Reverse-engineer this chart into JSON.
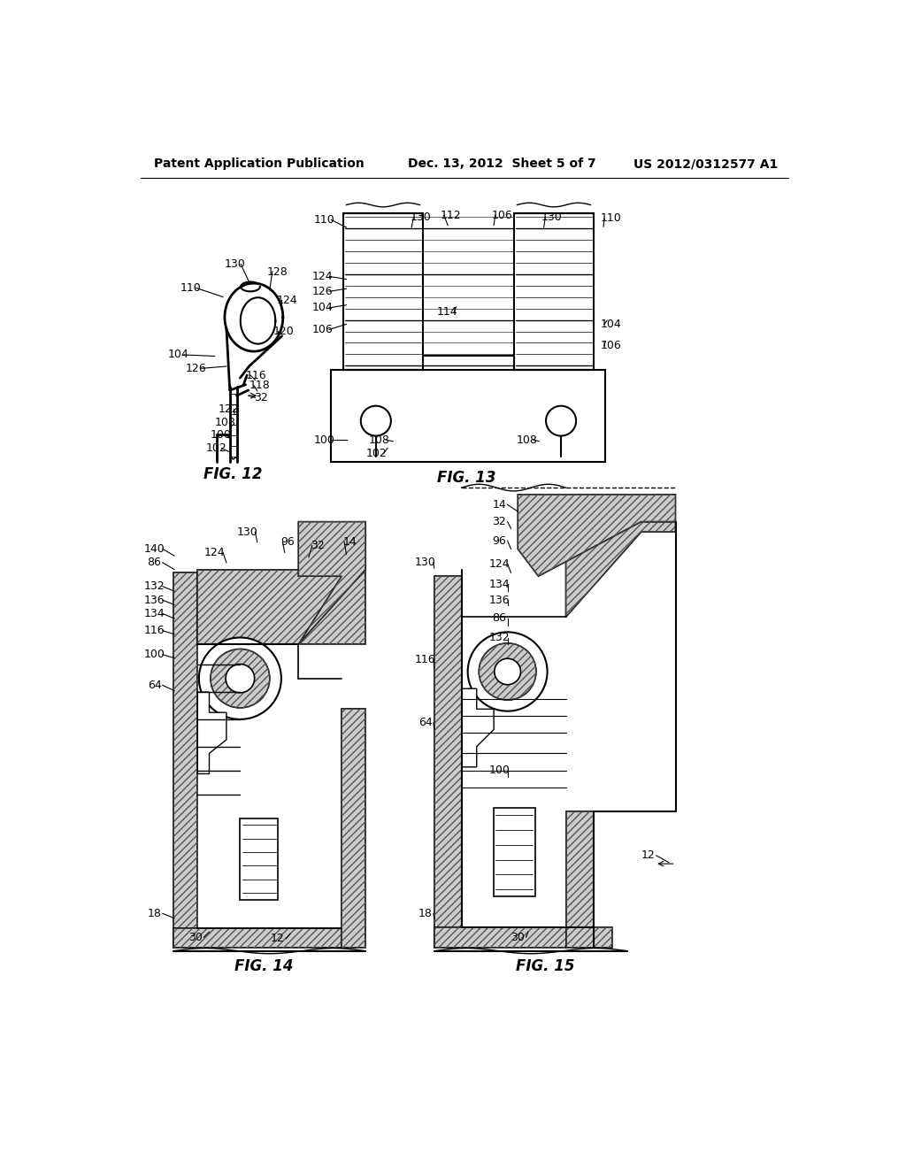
{
  "background_color": "#ffffff",
  "header_left": "Patent Application Publication",
  "header_center": "Dec. 13, 2012  Sheet 5 of 7",
  "header_right": "US 2012/0312577 A1",
  "fig12_label": "FIG. 12",
  "fig13_label": "FIG. 13",
  "fig14_label": "FIG. 14",
  "fig15_label": "FIG. 15",
  "line_color": "#000000",
  "text_color": "#000000",
  "font_size_header": 10,
  "font_size_label": 12,
  "font_size_callout": 9
}
